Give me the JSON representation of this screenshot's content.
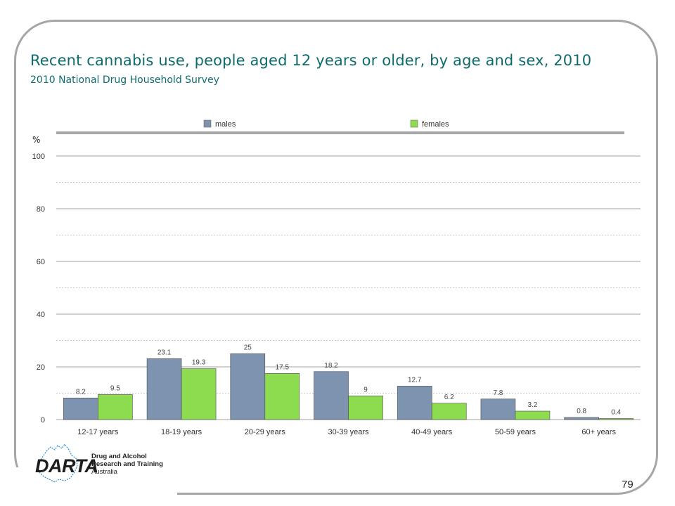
{
  "slide": {
    "title": "Recent cannabis use, people aged 12 years or older, by age and sex, 2010",
    "subtitle": "2010 National Drug Household Survey",
    "page_number": "79"
  },
  "logo": {
    "name": "DARTA",
    "line1": "Drug and Alcohol",
    "line2": "Research and Training",
    "line3": "Australia"
  },
  "chart_data": {
    "type": "bar",
    "title": "",
    "xlabel": "",
    "ylabel": "%",
    "ylim": [
      0,
      100
    ],
    "yticks": [
      0,
      20,
      40,
      60,
      80,
      100
    ],
    "grid": true,
    "legend_position": "top",
    "categories": [
      "12-17 years",
      "18-19 years",
      "20-29 years",
      "30-39 years",
      "40-49 years",
      "50-59 years",
      "60+ years"
    ],
    "series": [
      {
        "name": "males",
        "color": "#7e93b0",
        "values": [
          8.2,
          23.1,
          25,
          18.2,
          12.7,
          7.8,
          0.8
        ]
      },
      {
        "name": "females",
        "color": "#8ddb4f",
        "values": [
          9.5,
          19.3,
          17.5,
          9,
          6.2,
          3.2,
          0.4
        ]
      }
    ]
  }
}
